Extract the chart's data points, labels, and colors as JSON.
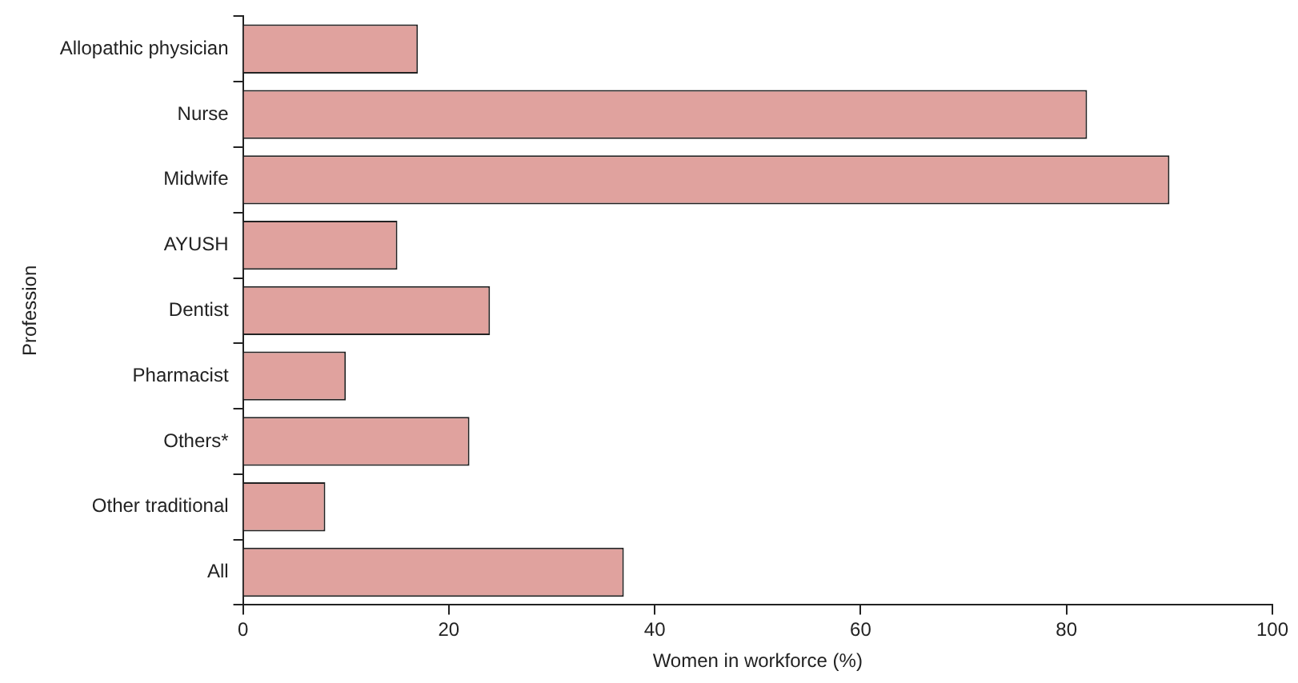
{
  "chart_data": {
    "type": "bar",
    "orientation": "horizontal",
    "xlabel": "Women in workforce (%)",
    "ylabel": "Profession",
    "categories": [
      "Allopathic physician",
      "Nurse",
      "Midwife",
      "AYUSH",
      "Dentist",
      "Pharmacist",
      "Others*",
      "Other traditional",
      "All"
    ],
    "values": [
      17,
      82,
      90,
      15,
      24,
      10,
      22,
      8,
      37
    ],
    "color": "#e0a29e",
    "xlim": [
      0,
      100
    ],
    "xticks": [
      0,
      20,
      40,
      60,
      80,
      100
    ],
    "legend": false
  }
}
